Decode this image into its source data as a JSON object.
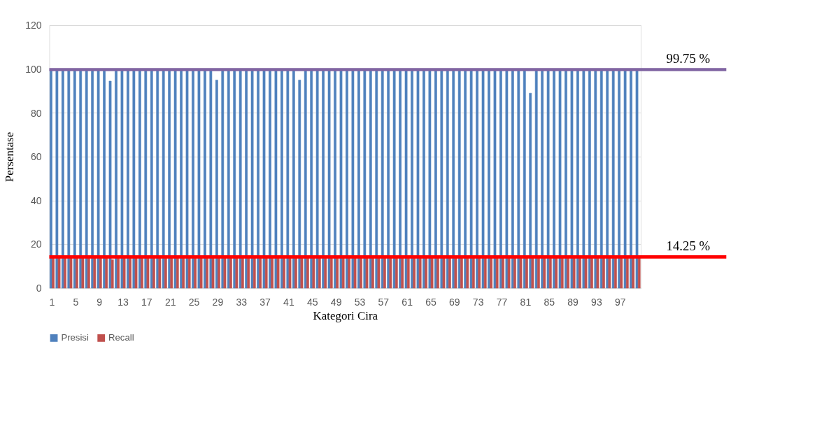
{
  "chart_data": {
    "type": "bar",
    "xlabel": "Kategori Cira",
    "ylabel": "Persentase",
    "categories": [
      "1",
      null,
      null,
      null,
      "5",
      null,
      null,
      null,
      "9",
      null,
      null,
      null,
      "13",
      null,
      null,
      null,
      "17",
      null,
      null,
      null,
      "21",
      null,
      null,
      null,
      "25",
      null,
      null,
      null,
      "29",
      null,
      null,
      null,
      "33",
      null,
      null,
      null,
      "37",
      null,
      null,
      null,
      "41",
      null,
      null,
      null,
      "45",
      null,
      null,
      null,
      "49",
      null,
      null,
      null,
      "53",
      null,
      null,
      null,
      "57",
      null,
      null,
      null,
      "61",
      null,
      null,
      null,
      "65",
      null,
      null,
      null,
      "69",
      null,
      null,
      null,
      "73",
      null,
      null,
      null,
      "77",
      null,
      null,
      null,
      "81",
      null,
      null,
      null,
      "85",
      null,
      null,
      null,
      "89",
      null,
      null,
      null,
      "93",
      null,
      null,
      null,
      "97",
      null,
      null,
      null
    ],
    "series": [
      {
        "name": "Presisi",
        "color": "#4f81bd",
        "values": [
          100,
          100,
          100,
          100,
          100,
          100,
          100,
          100,
          100,
          100,
          94.5,
          100,
          100,
          100,
          100,
          100,
          100,
          100,
          100,
          100,
          100,
          100,
          100,
          100,
          100,
          100,
          100,
          100,
          95,
          100,
          100,
          100,
          100,
          100,
          100,
          100,
          100,
          100,
          100,
          100,
          100,
          100,
          95,
          100,
          100,
          100,
          100,
          100,
          100,
          100,
          100,
          100,
          100,
          100,
          100,
          100,
          100,
          100,
          100,
          100,
          100,
          100,
          100,
          100,
          100,
          100,
          100,
          100,
          100,
          100,
          100,
          100,
          100,
          100,
          100,
          100,
          100,
          100,
          100,
          100,
          100,
          89,
          100,
          100,
          100,
          100,
          100,
          100,
          100,
          100,
          100,
          100,
          100,
          100,
          100,
          100,
          100,
          100,
          100,
          100
        ]
      },
      {
        "name": "Recall",
        "color": "#c0504d",
        "values": [
          14.3,
          14.3,
          14.3,
          14.3,
          14.3,
          14.3,
          14.3,
          14.3,
          14.3,
          14.3,
          13,
          14.3,
          14.3,
          14.3,
          14.3,
          14.3,
          14.3,
          14.3,
          14.3,
          14.3,
          14.3,
          14.3,
          14.3,
          14.3,
          14.3,
          14.3,
          14.3,
          14.3,
          14.3,
          14.3,
          14.3,
          14.3,
          14.3,
          14.3,
          14.3,
          14.3,
          14.3,
          14.3,
          14.3,
          14.3,
          14.3,
          14.3,
          14,
          14.3,
          14.3,
          14.3,
          14.3,
          14.3,
          14.3,
          14.3,
          14.3,
          14.3,
          14.3,
          14.3,
          14.3,
          14.3,
          14.3,
          14.3,
          14.3,
          14.3,
          14.3,
          14.3,
          14.3,
          14.3,
          14.3,
          14.3,
          14.3,
          14.3,
          14.3,
          14.3,
          14.3,
          14.3,
          14.3,
          14.3,
          14.3,
          14.3,
          14.3,
          14.3,
          14.3,
          14.3,
          14.3,
          14.3,
          14.3,
          14.3,
          14.3,
          14.3,
          14.3,
          14.3,
          14.3,
          14.3,
          14.3,
          14.3,
          14.3,
          14.3,
          14.3,
          14.3,
          14.3,
          14.3,
          14.3,
          14.3
        ]
      }
    ],
    "ylim": [
      0,
      120
    ],
    "yticks": [
      0,
      20,
      40,
      60,
      80,
      100,
      120
    ],
    "grid": "y",
    "legend": "bottom",
    "ref_lines": [
      {
        "axis": "y",
        "value": 99.75,
        "label": "99.75 %",
        "color": "#8064a2"
      },
      {
        "axis": "y",
        "value": 14.25,
        "label": "14.25 %",
        "color": "#ff0000"
      }
    ]
  }
}
